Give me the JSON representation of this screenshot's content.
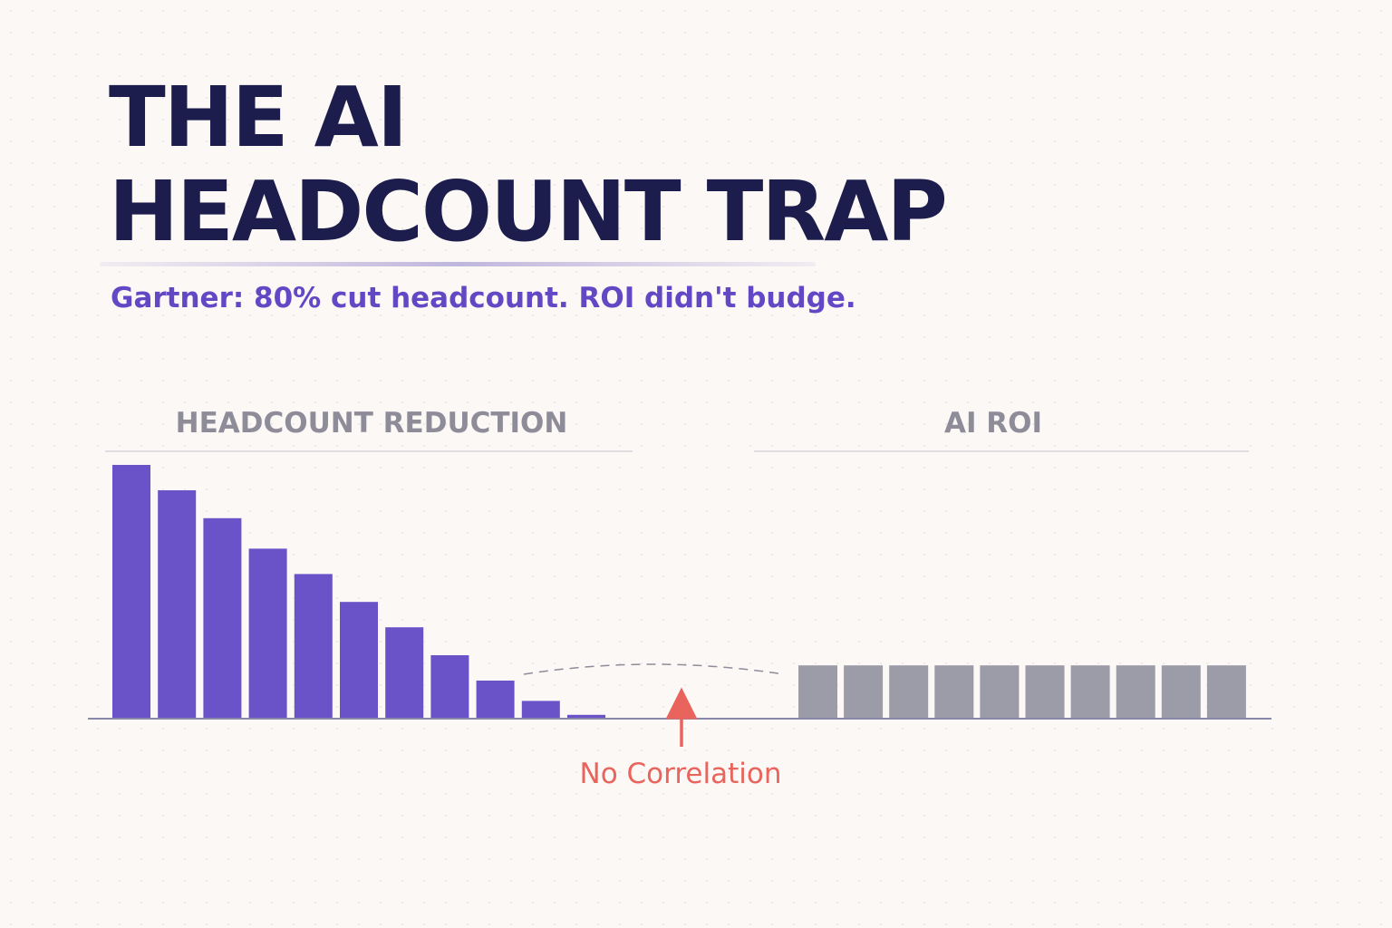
{
  "title_line1": "THE AI",
  "title_line2": "HEADCOUNT TRAP",
  "subtitle": "Gartner: 80% cut headcount. ROI didn't budge.",
  "annotation": "No Correlation",
  "colors": {
    "background": "#fcf8f5",
    "title": "#1c1d4c",
    "accent_purple": "#6a52c8",
    "bar_gray": "#9c9ba8",
    "annotation_red": "#e8645c",
    "panel_label_gray": "#8e8c98"
  },
  "chart_data": [
    {
      "type": "bar",
      "title": "HEADCOUNT REDUCTION",
      "values": [
        100,
        90,
        79,
        67,
        57,
        46,
        36,
        25,
        15,
        7,
        1.5
      ],
      "ylim": [
        0,
        100
      ],
      "color": "#6a52c8"
    },
    {
      "type": "bar",
      "title": "AI ROI",
      "values": [
        21,
        21,
        21,
        21,
        21,
        21,
        21,
        21,
        21,
        21
      ],
      "ylim": [
        0,
        100
      ],
      "color": "#9c9ba8"
    }
  ]
}
